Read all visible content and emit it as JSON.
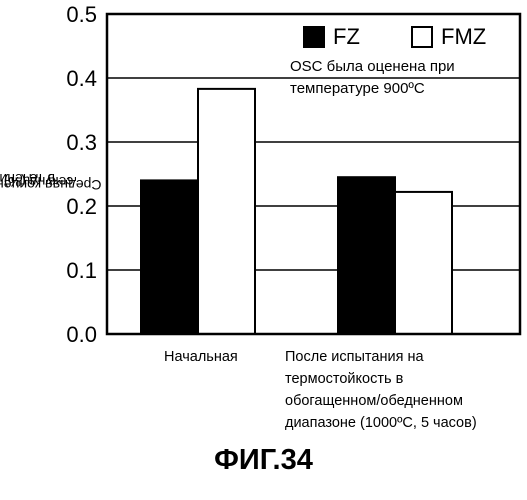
{
  "chart_data": {
    "type": "bar",
    "categories": [
      [
        "Начальная"
      ],
      [
        "После испытания на",
        "термостойкость в",
        "обогащенном/обедненном",
        "диапазоне (1000ºC, 5 часов)"
      ]
    ],
    "series": [
      {
        "name": "FZ",
        "values": [
          0.24,
          0.245
        ],
        "color": "#000000"
      },
      {
        "name": "FMZ",
        "values": [
          0.383,
          0.222
        ],
        "color": "#ffffff"
      }
    ],
    "ylim": [
      0.0,
      0.5
    ],
    "yticks": [
      "0.0",
      "0.1",
      "0.2",
      "0.3",
      "0.4",
      "0.5"
    ],
    "ylabel_lines": [
      "Средняя концентрация CO",
      "2",
      " в течение 20",
      "секунд (%)"
    ],
    "annotation": [
      "OSC была оценена при",
      "температуре 900ºC"
    ],
    "grid": true,
    "legend_position": "top-right",
    "figure_caption": "ФИГ.34"
  }
}
